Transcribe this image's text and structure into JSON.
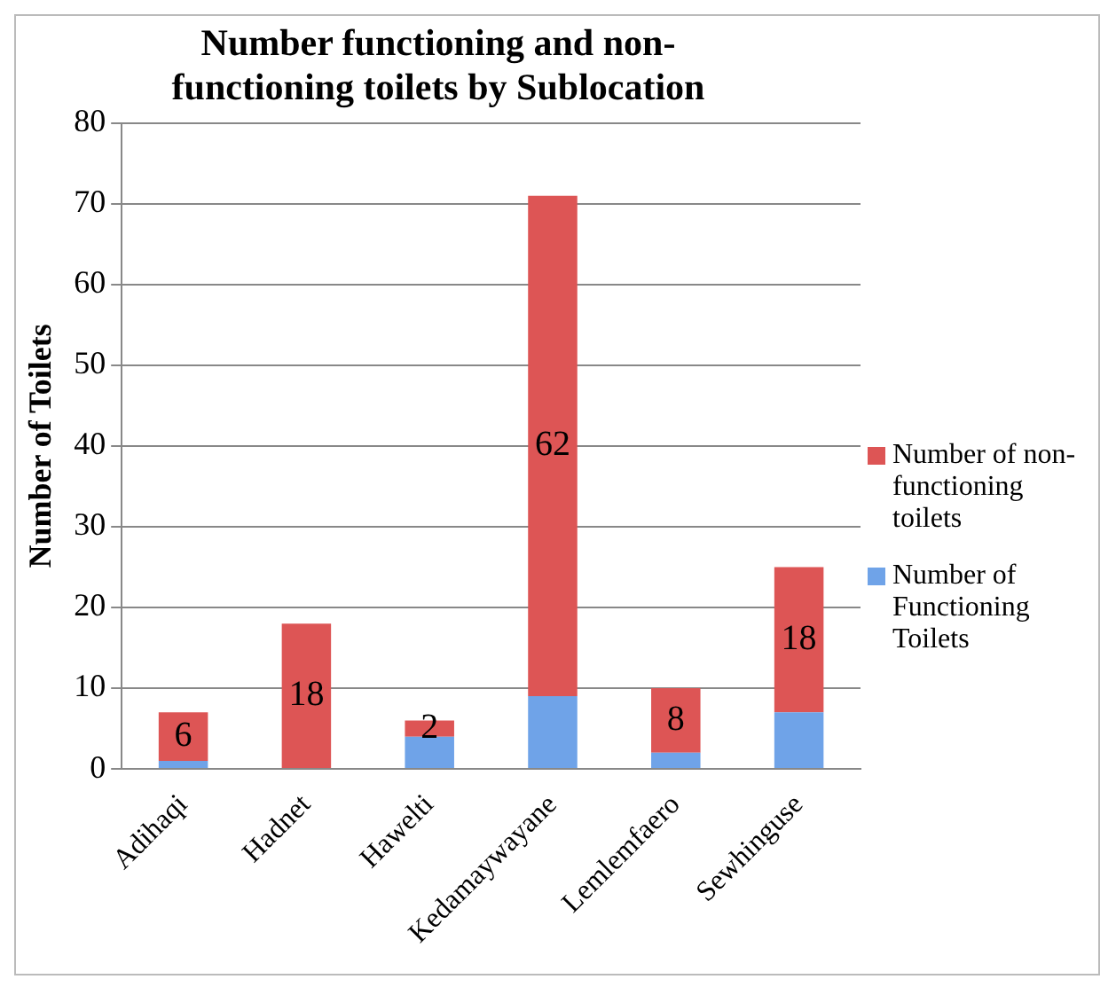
{
  "chart_data": {
    "type": "bar",
    "title": "Number functioning and non-functioning toilets by Sublocation",
    "ylabel": "Number of Toilets",
    "categories": [
      "Adihaqi",
      "Hadnet",
      "Hawelti",
      "Kedamaywayane",
      "Lemlemfaero",
      "Sewhinguse"
    ],
    "stacked": true,
    "series": [
      {
        "name": "Number of Functioning Toilets",
        "color": "#6fa3e8",
        "values": [
          1,
          0,
          4,
          9,
          2,
          7
        ]
      },
      {
        "name": "Number of non-functioning toilets",
        "color": "#dd5555",
        "values": [
          6,
          18,
          2,
          62,
          8,
          18
        ],
        "value_labels": [
          "6",
          "18",
          "2",
          "62",
          "8",
          "18"
        ]
      }
    ],
    "ylim": [
      0,
      80
    ],
    "yticks": [
      0,
      10,
      20,
      30,
      40,
      50,
      60,
      70,
      80
    ],
    "grid": "y",
    "legend": "right"
  }
}
